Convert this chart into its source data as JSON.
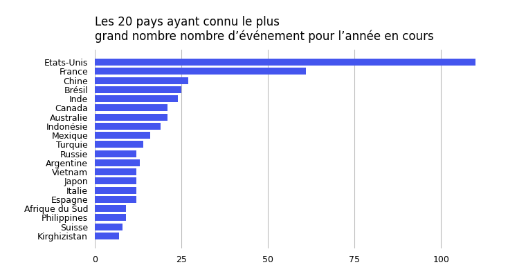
{
  "title_line1": "Les 20 pays ayant connu le plus ",
  "title_line2": "grand nombre nombre d’événement pour l’année en cours",
  "countries": [
    "Kirghizistan",
    "Suisse",
    "Philippines",
    "Afrique du Sud",
    "Espagne",
    "Italie",
    "Japon",
    "Vietnam",
    "Argentine",
    "Russie",
    "Turquie",
    "Mexique",
    "Indonésie",
    "Australie",
    "Canada",
    "Inde",
    "Brésil",
    "Chine",
    "France",
    "Etats-Unis"
  ],
  "values": [
    7,
    8,
    9,
    9,
    12,
    12,
    12,
    12,
    13,
    12,
    14,
    16,
    19,
    21,
    21,
    24,
    25,
    27,
    61,
    110
  ],
  "bar_color": "#4455ee",
  "background_color": "#ffffff",
  "grid_color": "#bbbbbb",
  "xlim": [
    0,
    120
  ],
  "xticks": [
    0,
    25,
    50,
    75,
    100
  ],
  "title_fontsize": 12,
  "label_fontsize": 9,
  "tick_fontsize": 9,
  "bar_height": 0.75
}
